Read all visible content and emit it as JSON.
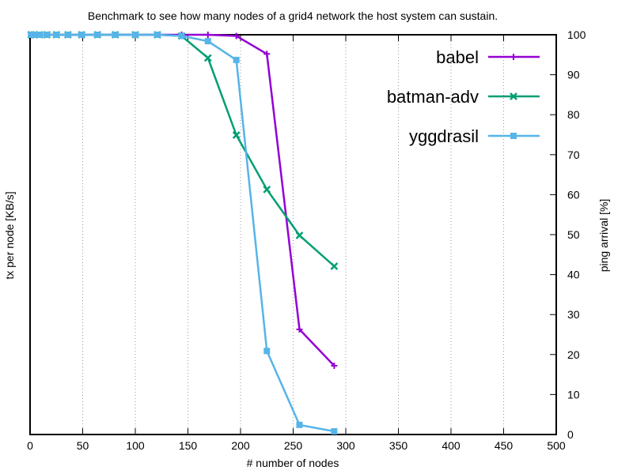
{
  "chart_data": {
    "type": "line",
    "title": "Benchmark to see how many nodes of a grid4 network the host system can sustain.",
    "xlabel": "# number of nodes",
    "ylabel_left": "tx per node [KB/s]",
    "ylabel_right": "ping arrival [%]",
    "xlim": [
      0,
      500
    ],
    "ylim_right": [
      0,
      100
    ],
    "x_ticks": [
      0,
      50,
      100,
      150,
      200,
      250,
      300,
      350,
      400,
      450,
      500
    ],
    "y_right_ticks": [
      0,
      10,
      20,
      30,
      40,
      50,
      60,
      70,
      80,
      90,
      100
    ],
    "grid": "vertical-dotted",
    "legend_position": "top-right",
    "series": [
      {
        "name": "babel",
        "color": "#9400d3",
        "marker": "plus",
        "x": [
          1,
          4,
          9,
          16,
          25,
          36,
          49,
          64,
          81,
          100,
          121,
          144,
          169,
          196,
          225,
          256,
          289
        ],
        "y": [
          100,
          100,
          100,
          100,
          100,
          100,
          100,
          100,
          100,
          100,
          100,
          100,
          100,
          99.7,
          95.2,
          26.3,
          17.2
        ]
      },
      {
        "name": "batman-adv",
        "color": "#009e73",
        "marker": "x",
        "x": [
          1,
          4,
          9,
          16,
          25,
          36,
          49,
          64,
          81,
          100,
          121,
          144,
          169,
          196,
          225,
          256,
          289
        ],
        "y": [
          100,
          100,
          100,
          100,
          100,
          100,
          100,
          100,
          100,
          100,
          100,
          99.7,
          94.2,
          74.9,
          61.3,
          49.8,
          42.1
        ]
      },
      {
        "name": "yggdrasil",
        "color": "#56b4e9",
        "marker": "square",
        "x": [
          1,
          4,
          9,
          16,
          25,
          36,
          49,
          64,
          81,
          100,
          121,
          144,
          169,
          196,
          225,
          256,
          289
        ],
        "y": [
          100,
          100,
          100,
          100,
          100,
          100,
          100,
          100,
          100,
          100,
          100,
          99.7,
          98.4,
          93.7,
          20.9,
          2.4,
          0.8
        ]
      }
    ]
  }
}
